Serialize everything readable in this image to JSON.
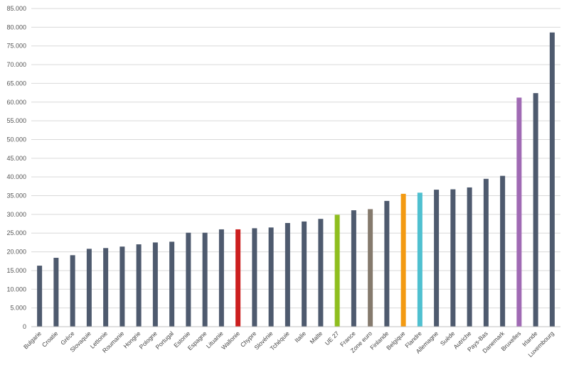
{
  "chart_data": {
    "type": "bar",
    "categories": [
      "Bulgarie",
      "Croatie",
      "Grèce",
      "Slovaquie",
      "Lettonie",
      "Roumanie",
      "Hongrie",
      "Pologne",
      "Portugal",
      "Estonie",
      "Espagne",
      "Lituanie",
      "Wallonie",
      "Chypre",
      "Slovénie",
      "Tchéquie",
      "Italie",
      "Malte",
      "UE 27",
      "France",
      "Zone euro",
      "Finlande",
      "Belgique",
      "Flandre",
      "Allemagne",
      "Suède",
      "Autriche",
      "Pays-Bas",
      "Danemark",
      "Bruxelles",
      "Irlande",
      "Luxembourg"
    ],
    "values": [
      16300,
      18400,
      19100,
      20800,
      21000,
      21400,
      22000,
      22500,
      22700,
      25100,
      25100,
      26000,
      26000,
      26300,
      26500,
      27700,
      28100,
      28800,
      29900,
      31100,
      31400,
      33600,
      35500,
      35800,
      36600,
      36700,
      37200,
      39500,
      40300,
      61200,
      62400,
      78600
    ],
    "colors": [
      "#4e5a6e",
      "#4e5a6e",
      "#4e5a6e",
      "#4e5a6e",
      "#4e5a6e",
      "#4e5a6e",
      "#4e5a6e",
      "#4e5a6e",
      "#4e5a6e",
      "#4e5a6e",
      "#4e5a6e",
      "#4e5a6e",
      "#cc1f1f",
      "#4e5a6e",
      "#4e5a6e",
      "#4e5a6e",
      "#4e5a6e",
      "#4e5a6e",
      "#8fbe1f",
      "#4e5a6e",
      "#857a6d",
      "#4e5a6e",
      "#f39a12",
      "#4fc0d0",
      "#4e5a6e",
      "#4e5a6e",
      "#4e5a6e",
      "#4e5a6e",
      "#4e5a6e",
      "#a06ab4",
      "#4e5a6e",
      "#4e5a6e"
    ],
    "y_ticks": [
      "0",
      "5.000",
      "10.000",
      "15.000",
      "20.000",
      "25.000",
      "30.000",
      "35.000",
      "40.000",
      "45.000",
      "50.000",
      "55.000",
      "60.000",
      "65.000",
      "70.000",
      "75.000",
      "80.000",
      "85.000"
    ],
    "ylim": [
      0,
      85000
    ],
    "y_step": 5000,
    "grid": true,
    "title": "",
    "xlabel": "",
    "ylabel": ""
  }
}
